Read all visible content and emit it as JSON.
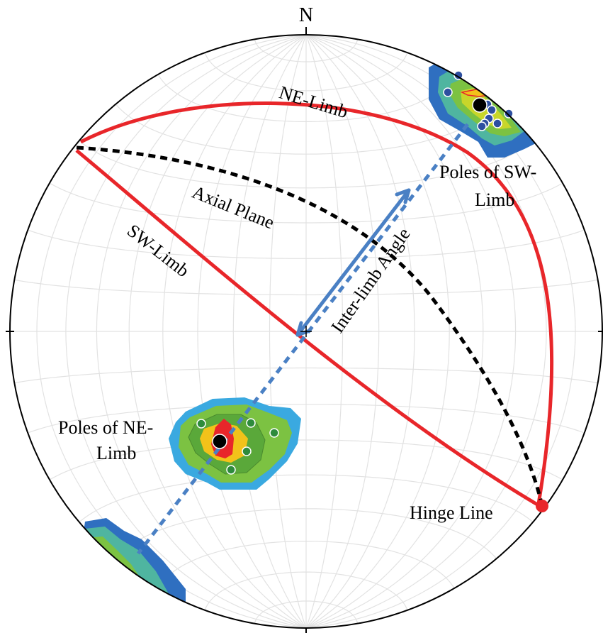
{
  "diagram": {
    "north_label": "N",
    "labels": {
      "ne_limb": "NE-Limb",
      "sw_limb": "SW-Limb",
      "axial_plane": "Axial Plane",
      "inter_limb_angle": "Inter-limb Angle",
      "poles_sw_line1": "Poles of SW-",
      "poles_sw_line2": "Limb",
      "poles_ne_line1": "Poles of NE-",
      "poles_ne_line2": "Limb",
      "hinge_line": "Hinge Line"
    },
    "colors": {
      "great_circle": "#e8262a",
      "axial_plane": "#000000",
      "angle_arrow": "#4a80c4",
      "sw_pole_points": "#2d4fa0",
      "ne_pole_points": "#2e8b3c",
      "contour_levels": [
        "#3aa9e0",
        "#2f6fc0",
        "#4fb5a0",
        "#7cc242",
        "#5aa83a",
        "#f2c21a",
        "#e8262a"
      ]
    }
  }
}
